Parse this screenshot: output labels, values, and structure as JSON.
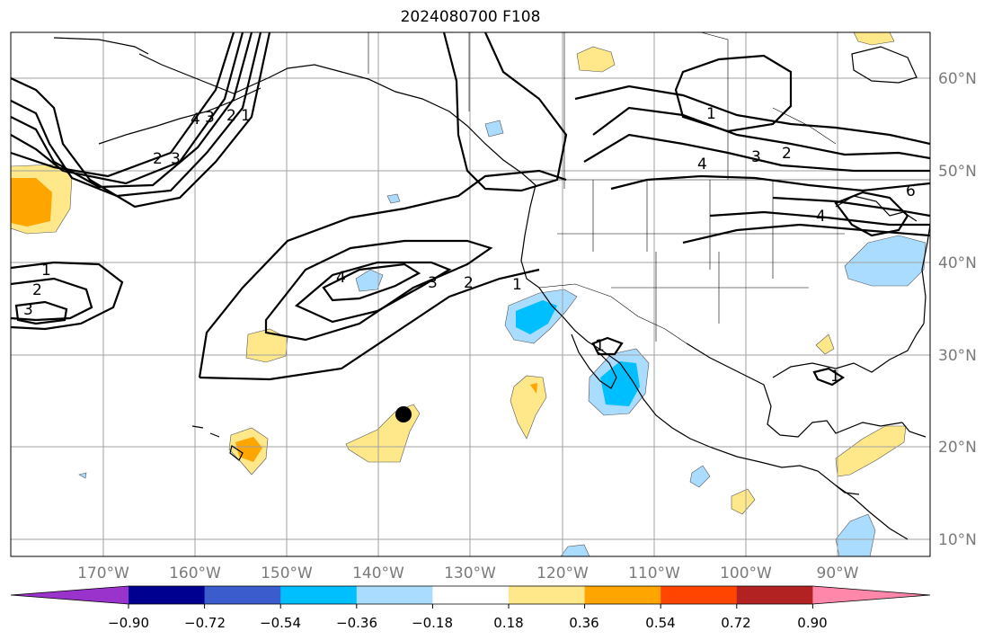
{
  "title": "2024080700 F108",
  "map": {
    "projection": "mercator",
    "lon_range": [
      -180,
      -80
    ],
    "lat_range": [
      8,
      65
    ],
    "lon_ticks": [
      "170°W",
      "160°W",
      "150°W",
      "140°W",
      "130°W",
      "120°W",
      "110°W",
      "100°W",
      "90°W"
    ],
    "lat_ticks": [
      "10°N",
      "20°N",
      "30°N",
      "40°N",
      "50°N",
      "60°N"
    ],
    "gridlines": true,
    "contour_labels": [
      "1",
      "2",
      "3",
      "4",
      "1",
      "2",
      "3",
      "4",
      "3",
      "2",
      "1",
      "1",
      "2",
      "3",
      "4",
      "6",
      "1",
      "1",
      "2",
      "3",
      "4"
    ],
    "marker": "filled black circle near 23°N 137°W"
  },
  "colorbar": {
    "colors": [
      "#9933cc",
      "#000090",
      "#3a5ccc",
      "#00bfff",
      "#aadcff",
      "#ffffff",
      "#ffe88a",
      "#ffa500",
      "#ff4500",
      "#b22222",
      "#ff88aa"
    ],
    "tick_labels": [
      "−0.90",
      "−0.72",
      "−0.54",
      "−0.36",
      "−0.18",
      "0.18",
      "0.36",
      "0.54",
      "0.72",
      "0.90"
    ],
    "extend": "both"
  },
  "colors": {
    "light_blue": "#aadcff",
    "blue": "#00bfff",
    "yellow": "#ffe88a",
    "orange": "#ffa500",
    "grid": "#a0a0a0"
  }
}
